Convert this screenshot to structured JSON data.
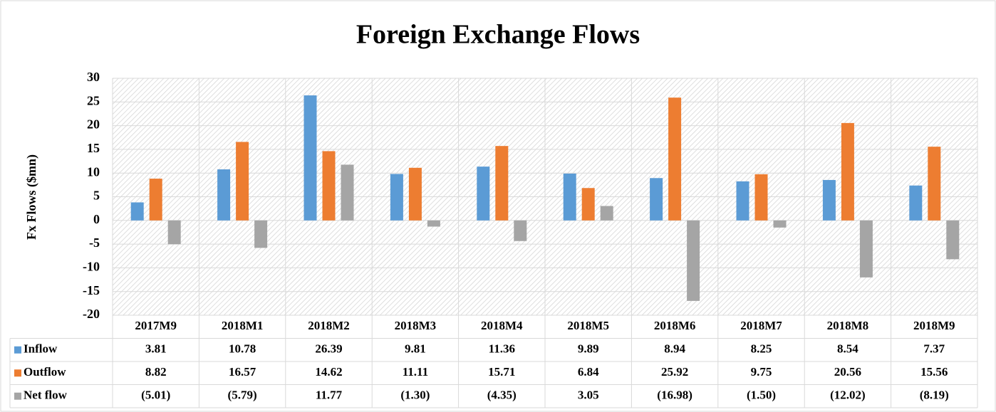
{
  "chart_data": {
    "type": "bar",
    "title": "Foreign Exchange Flows",
    "y_label": "Fx Flows ($mn)",
    "categories": [
      "2017M9",
      "2018M1",
      "2018M2",
      "2018M3",
      "2018M4",
      "2018M5",
      "2018M6",
      "2018M7",
      "2018M8",
      "2018M9"
    ],
    "series": [
      {
        "name": "Inflow",
        "color": "#5b9bd5",
        "values": [
          3.81,
          10.78,
          26.39,
          9.81,
          11.36,
          9.89,
          8.94,
          8.25,
          8.54,
          7.37
        ]
      },
      {
        "name": "Outflow",
        "color": "#ed7d31",
        "values": [
          8.82,
          16.57,
          14.62,
          11.11,
          15.71,
          6.84,
          25.92,
          9.75,
          20.56,
          15.56
        ]
      },
      {
        "name": "Net flow",
        "color": "#a5a5a5",
        "values": [
          -5.01,
          -5.79,
          11.77,
          -1.3,
          -4.35,
          3.05,
          -16.98,
          -1.5,
          -12.02,
          -8.19
        ],
        "value_labels": [
          "(5.01)",
          "(5.79)",
          "11.77",
          "(1.30)",
          "(4.35)",
          "3.05",
          "(16.98)",
          "(1.50)",
          "(12.02)",
          "(8.19)"
        ]
      }
    ],
    "ylim": [
      -20,
      30
    ],
    "yticks": [
      -20,
      -15,
      -10,
      -5,
      0,
      5,
      10,
      15,
      20,
      25,
      30
    ],
    "grid": true,
    "data_table": true
  }
}
